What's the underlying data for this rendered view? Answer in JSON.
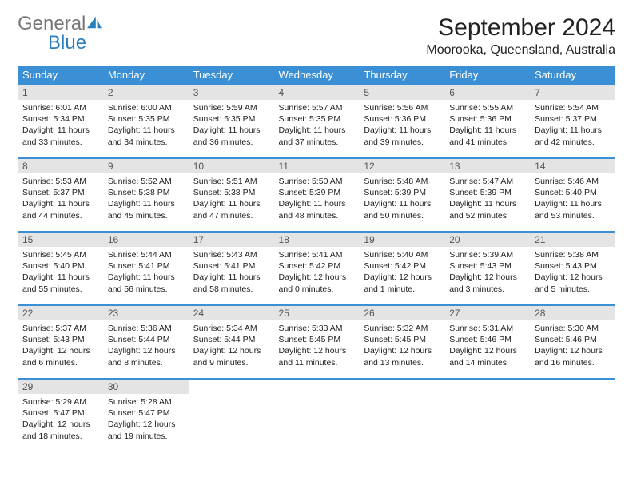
{
  "logo": {
    "text_grey": "General",
    "text_blue": "Blue"
  },
  "header": {
    "title": "September 2024",
    "location": "Moorooka, Queensland, Australia"
  },
  "colors": {
    "header_bg": "#3b8fd4",
    "header_fg": "#ffffff",
    "daynum_bg": "#e4e4e4",
    "row_border": "#3b8fd4",
    "logo_grey": "#777777",
    "logo_blue": "#2a7fbf"
  },
  "weekdays": [
    "Sunday",
    "Monday",
    "Tuesday",
    "Wednesday",
    "Thursday",
    "Friday",
    "Saturday"
  ],
  "calendar": {
    "first_weekday_index": 0,
    "num_days": 30,
    "days": [
      {
        "n": 1,
        "sunrise": "6:01 AM",
        "sunset": "5:34 PM",
        "daylight": "11 hours and 33 minutes."
      },
      {
        "n": 2,
        "sunrise": "6:00 AM",
        "sunset": "5:35 PM",
        "daylight": "11 hours and 34 minutes."
      },
      {
        "n": 3,
        "sunrise": "5:59 AM",
        "sunset": "5:35 PM",
        "daylight": "11 hours and 36 minutes."
      },
      {
        "n": 4,
        "sunrise": "5:57 AM",
        "sunset": "5:35 PM",
        "daylight": "11 hours and 37 minutes."
      },
      {
        "n": 5,
        "sunrise": "5:56 AM",
        "sunset": "5:36 PM",
        "daylight": "11 hours and 39 minutes."
      },
      {
        "n": 6,
        "sunrise": "5:55 AM",
        "sunset": "5:36 PM",
        "daylight": "11 hours and 41 minutes."
      },
      {
        "n": 7,
        "sunrise": "5:54 AM",
        "sunset": "5:37 PM",
        "daylight": "11 hours and 42 minutes."
      },
      {
        "n": 8,
        "sunrise": "5:53 AM",
        "sunset": "5:37 PM",
        "daylight": "11 hours and 44 minutes."
      },
      {
        "n": 9,
        "sunrise": "5:52 AM",
        "sunset": "5:38 PM",
        "daylight": "11 hours and 45 minutes."
      },
      {
        "n": 10,
        "sunrise": "5:51 AM",
        "sunset": "5:38 PM",
        "daylight": "11 hours and 47 minutes."
      },
      {
        "n": 11,
        "sunrise": "5:50 AM",
        "sunset": "5:39 PM",
        "daylight": "11 hours and 48 minutes."
      },
      {
        "n": 12,
        "sunrise": "5:48 AM",
        "sunset": "5:39 PM",
        "daylight": "11 hours and 50 minutes."
      },
      {
        "n": 13,
        "sunrise": "5:47 AM",
        "sunset": "5:39 PM",
        "daylight": "11 hours and 52 minutes."
      },
      {
        "n": 14,
        "sunrise": "5:46 AM",
        "sunset": "5:40 PM",
        "daylight": "11 hours and 53 minutes."
      },
      {
        "n": 15,
        "sunrise": "5:45 AM",
        "sunset": "5:40 PM",
        "daylight": "11 hours and 55 minutes."
      },
      {
        "n": 16,
        "sunrise": "5:44 AM",
        "sunset": "5:41 PM",
        "daylight": "11 hours and 56 minutes."
      },
      {
        "n": 17,
        "sunrise": "5:43 AM",
        "sunset": "5:41 PM",
        "daylight": "11 hours and 58 minutes."
      },
      {
        "n": 18,
        "sunrise": "5:41 AM",
        "sunset": "5:42 PM",
        "daylight": "12 hours and 0 minutes."
      },
      {
        "n": 19,
        "sunrise": "5:40 AM",
        "sunset": "5:42 PM",
        "daylight": "12 hours and 1 minute."
      },
      {
        "n": 20,
        "sunrise": "5:39 AM",
        "sunset": "5:43 PM",
        "daylight": "12 hours and 3 minutes."
      },
      {
        "n": 21,
        "sunrise": "5:38 AM",
        "sunset": "5:43 PM",
        "daylight": "12 hours and 5 minutes."
      },
      {
        "n": 22,
        "sunrise": "5:37 AM",
        "sunset": "5:43 PM",
        "daylight": "12 hours and 6 minutes."
      },
      {
        "n": 23,
        "sunrise": "5:36 AM",
        "sunset": "5:44 PM",
        "daylight": "12 hours and 8 minutes."
      },
      {
        "n": 24,
        "sunrise": "5:34 AM",
        "sunset": "5:44 PM",
        "daylight": "12 hours and 9 minutes."
      },
      {
        "n": 25,
        "sunrise": "5:33 AM",
        "sunset": "5:45 PM",
        "daylight": "12 hours and 11 minutes."
      },
      {
        "n": 26,
        "sunrise": "5:32 AM",
        "sunset": "5:45 PM",
        "daylight": "12 hours and 13 minutes."
      },
      {
        "n": 27,
        "sunrise": "5:31 AM",
        "sunset": "5:46 PM",
        "daylight": "12 hours and 14 minutes."
      },
      {
        "n": 28,
        "sunrise": "5:30 AM",
        "sunset": "5:46 PM",
        "daylight": "12 hours and 16 minutes."
      },
      {
        "n": 29,
        "sunrise": "5:29 AM",
        "sunset": "5:47 PM",
        "daylight": "12 hours and 18 minutes."
      },
      {
        "n": 30,
        "sunrise": "5:28 AM",
        "sunset": "5:47 PM",
        "daylight": "12 hours and 19 minutes."
      }
    ],
    "labels": {
      "sunrise": "Sunrise:",
      "sunset": "Sunset:",
      "daylight": "Daylight:"
    }
  }
}
